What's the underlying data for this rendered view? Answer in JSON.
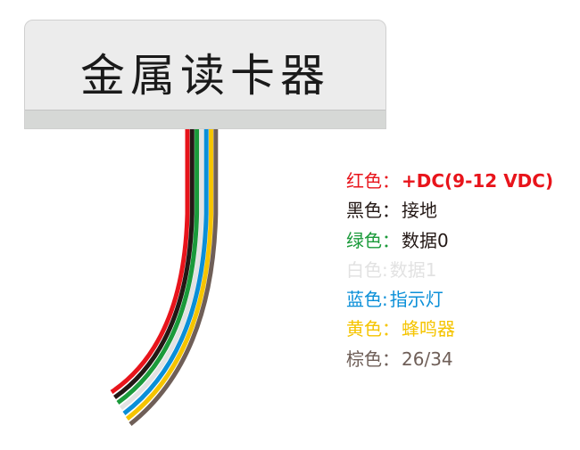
{
  "title": "金属读卡器",
  "wires": [
    {
      "label": "红色",
      "sep": "：",
      "value": "+DC(9-12 VDC)",
      "color": "#e8141b",
      "bold": true,
      "value_color": "#e8141b"
    },
    {
      "label": "黑色",
      "sep": "：",
      "value": "接地",
      "color": "#231815",
      "value_color": "#231815"
    },
    {
      "label": "绿色",
      "sep": "：",
      "value": "数据0",
      "color": "#1a9a3a",
      "value_color": "#231815"
    },
    {
      "label": "白色",
      "sep": ":",
      "value": "数据1",
      "color": "#e2e2e2",
      "value_color": "#e2e2e2"
    },
    {
      "label": "蓝色",
      "sep": ":",
      "value": "指示灯",
      "color": "#0a8fd8",
      "value_color": "#0a8fd8"
    },
    {
      "label": "黄色",
      "sep": "：",
      "value": "蜂鸣器",
      "color": "#f5c400",
      "value_color": "#f5c400"
    },
    {
      "label": "棕色",
      "sep": "：",
      "value": "26/34",
      "color": "#6f5f58",
      "value_color": "#6f5f58"
    }
  ]
}
